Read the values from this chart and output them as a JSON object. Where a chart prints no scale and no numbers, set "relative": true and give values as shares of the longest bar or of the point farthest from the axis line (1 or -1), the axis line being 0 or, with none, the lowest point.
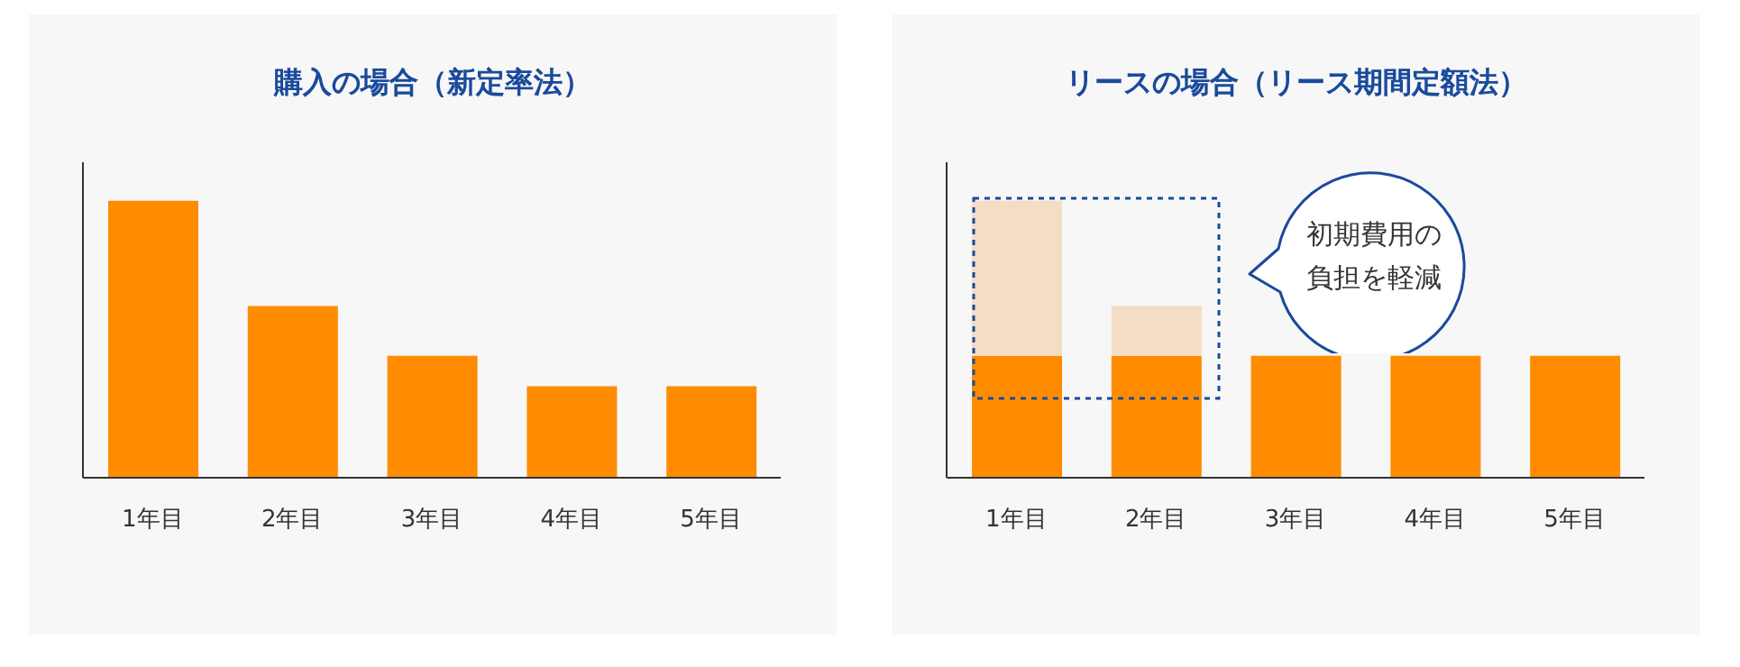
{
  "chart_data": [
    {
      "type": "bar",
      "title": "購入の場合（新定率法）",
      "categories": [
        "1年目",
        "2年目",
        "3年目",
        "4年目",
        "5年目"
      ],
      "relative": true,
      "color": "#ff8c00",
      "values": [
        1,
        0.62,
        0.44,
        0.33,
        0.33
      ]
    },
    {
      "type": "bar",
      "title": "リースの場合（リース期間定額法）",
      "categories": [
        "1年目",
        "2年目",
        "3年目",
        "4年目",
        "5年目"
      ],
      "relative": true,
      "stacked": true,
      "series": [
        {
          "color": "#ff8c00",
          "values": [
            0.44,
            0.44,
            0.44,
            0.44,
            0.44
          ]
        },
        {
          "color": "#f5dcc4",
          "values": [
            0.56,
            0.18,
            null,
            null,
            null
          ]
        }
      ],
      "annotations": [
        "初期費用の負担を軽減"
      ]
    }
  ]
}
